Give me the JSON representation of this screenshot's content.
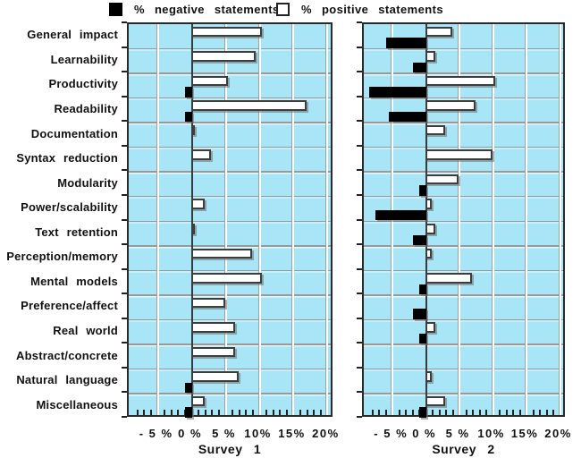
{
  "chart_data": {
    "type": "bar",
    "orientation": "horizontal",
    "title": "",
    "xlabel": "",
    "ylabel": "",
    "grid": true,
    "plot_bg_color": "#A8E6F7",
    "negative_color": "#000000",
    "positive_color": "#FFFFFF",
    "xlim": [
      -9.3,
      21
    ],
    "xticks": [
      -5,
      0,
      5,
      10,
      15,
      20
    ],
    "xtick_labels": [
      "- 5 %",
      "0 %",
      "5 %",
      "10%",
      "15%",
      "20%"
    ],
    "legend": [
      "% negative statements",
      "% positive statements"
    ],
    "legend_position": "top",
    "categories": [
      "General impact",
      "Learnability",
      "Productivity",
      "Readability",
      "Documentation",
      "Syntax reduction",
      "Modularity",
      "Power/scalability",
      "Text retention",
      "Perception/memory",
      "Mental models",
      "Preference/affect",
      "Real world",
      "Abstract/concrete",
      "Natural language",
      "Miscellaneous"
    ],
    "panels": [
      {
        "title": "Survey 1",
        "series": [
          {
            "name": "% negative statements",
            "values": [
              0,
              0,
              1,
              1,
              0,
              0,
              0,
              0,
              0,
              0,
              0,
              0,
              0,
              0,
              1,
              1
            ]
          },
          {
            "name": "% positive statements",
            "values": [
              10.5,
              9.5,
              5.5,
              17,
              0.5,
              3,
              0,
              2,
              0.5,
              9,
              10.5,
              5,
              6.5,
              6.5,
              7,
              2
            ]
          }
        ]
      },
      {
        "title": "Survey 2",
        "series": [
          {
            "name": "% negative statements",
            "values": [
              6,
              2,
              8.5,
              5.5,
              0,
              0,
              1,
              7.5,
              2,
              0,
              1,
              2,
              1,
              0,
              0,
              1
            ]
          },
          {
            "name": "% positive statements",
            "values": [
              4,
              1.5,
              10.5,
              7.5,
              3,
              10,
              5,
              1,
              1.5,
              1,
              7,
              0,
              1.5,
              0,
              1,
              3
            ]
          }
        ]
      }
    ]
  }
}
